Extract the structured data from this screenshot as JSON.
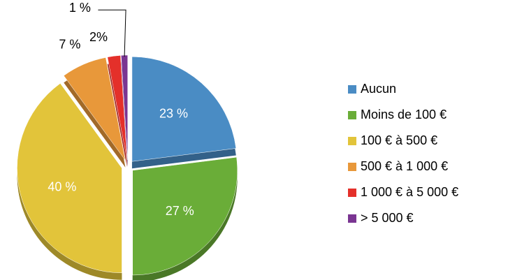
{
  "chart_data": {
    "type": "pie",
    "categories": [
      "Aucun",
      "Moins de 100 €",
      "100 € à 500 €",
      "500 € à 1 000 €",
      "1 000 € à 5 000 €",
      "> 5 000 €"
    ],
    "values": [
      23,
      27,
      40,
      7,
      2,
      1
    ],
    "value_labels": [
      "23 %",
      "27 %",
      "40 %",
      "7 %",
      "2%",
      "1 %"
    ],
    "colors": [
      "#4a8cc4",
      "#6aad38",
      "#e2c43a",
      "#e8983a",
      "#e4302a",
      "#7a3592"
    ],
    "legend": "right"
  }
}
